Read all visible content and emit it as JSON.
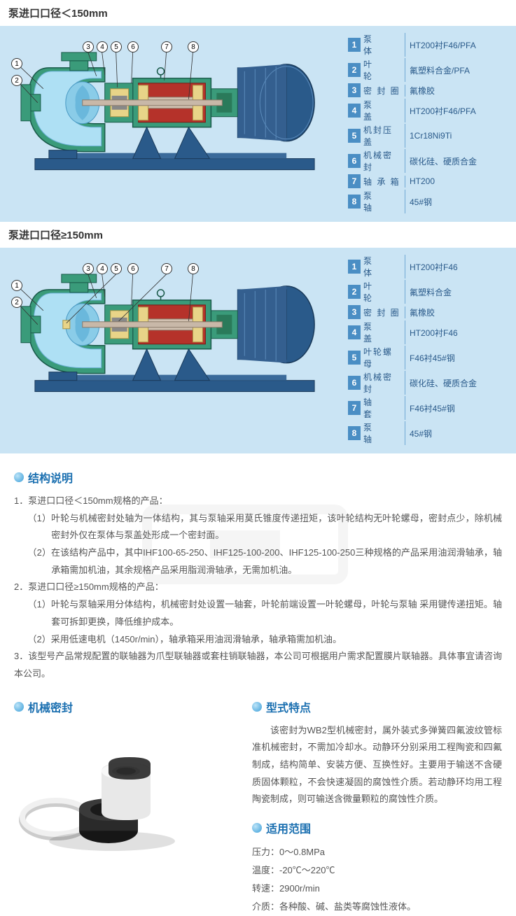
{
  "title1": "泵进口口径＜150mm",
  "title2": "泵进口口径≥150mm",
  "parts1": [
    {
      "n": "1",
      "name": "泵　　体",
      "mat": "HT200衬F46/PFA"
    },
    {
      "n": "2",
      "name": "叶　　轮",
      "mat": "氟塑料合金/PFA"
    },
    {
      "n": "3",
      "name": "密 封 圈",
      "mat": "氟橡胶"
    },
    {
      "n": "4",
      "name": "泵　　盖",
      "mat": "HT200衬F46/PFA"
    },
    {
      "n": "5",
      "name": "机封压盖",
      "mat": "1Cr18Ni9Ti"
    },
    {
      "n": "6",
      "name": "机械密封",
      "mat": "碳化硅、硬质合金"
    },
    {
      "n": "7",
      "name": "轴 承 箱",
      "mat": "HT200"
    },
    {
      "n": "8",
      "name": "泵　　轴",
      "mat": "45#钢"
    }
  ],
  "parts2": [
    {
      "n": "1",
      "name": "泵　　体",
      "mat": "HT200衬F46"
    },
    {
      "n": "2",
      "name": "叶　　轮",
      "mat": "氟塑料合金"
    },
    {
      "n": "3",
      "name": "密 封 圈",
      "mat": "氟橡胶"
    },
    {
      "n": "4",
      "name": "泵　　盖",
      "mat": "HT200衬F46"
    },
    {
      "n": "5",
      "name": "叶轮螺母",
      "mat": "F46衬45#钢"
    },
    {
      "n": "6",
      "name": "机械密封",
      "mat": "碳化硅、硬质合金"
    },
    {
      "n": "7",
      "name": "轴　　套",
      "mat": "F46衬45#钢"
    },
    {
      "n": "8",
      "name": "泵　　轴",
      "mat": "45#钢"
    }
  ],
  "struct_heading": "结构说明",
  "struct_lines": [
    "1．泵进口口径＜150mm规格的产品：",
    "（1）叶轮与机械密封处轴为一体结构，其与泵轴采用莫氏锥度传递扭矩，该叶轮结构无叶轮螺母，密封点少，除机械密封外仅在泵体与泵盖处形成一个密封面。",
    "（2）在该结构产品中，其中IHF100-65-250、IHF125-100-200、IHF125-100-250三种规格的产品采用油润滑轴承，轴承箱需加机油，其余规格产品采用脂润滑轴承，无需加机油。",
    "2．泵进口口径≥150mm规格的产品：",
    "（1）叶轮与泵轴采用分体结构，机械密封处设置一轴套，叶轮前端设置一叶轮螺母，叶轮与泵轴 采用键传递扭矩。轴套可拆卸更换，降低维护成本。",
    "（2）采用低速电机（1450r/min），轴承箱采用油润滑轴承，轴承箱需加机油。",
    "3．该型号产品常规配置的联轴器为爪型联轴器或套柱销联轴器，本公司可根据用户需求配置膜片联轴器。具体事宜请咨询本公司。"
  ],
  "seal_heading": "机械密封",
  "type_heading": "型式特点",
  "type_desc": "该密封为WB2型机械密封，属外装式多弹簧四氟波纹管标准机械密封，不需加冷却水。动静环分别采用工程陶瓷和四氟制成，结构简单、安装方便、互换性好。主要用于输送不含硬质固体颗粒，不会快速凝固的腐蚀性介质。若动静环均用工程陶瓷制成，则可输送含微量颗粒的腐蚀性介质。",
  "range_heading": "适用范围",
  "range_specs": [
    {
      "k": "压力：",
      "v": "0～0.8MPa"
    },
    {
      "k": "温度：",
      "v": "-20℃～220℃"
    },
    {
      "k": "转速：",
      "v": "2900r/min"
    },
    {
      "k": "介质：",
      "v": "各种酸、碱、盐类等腐蚀性液体。"
    }
  ],
  "colors": {
    "bg_blue": "#cae4f4",
    "badge_blue": "#4a8ec4",
    "text_blue": "#2a5a8a",
    "heading_blue": "#1a6fb0",
    "pump_green": "#3a9b7a",
    "pump_red": "#b5322a",
    "pump_navy": "#2a5a8a",
    "pump_yellow": "#e8d488"
  },
  "callouts": [
    "1",
    "2",
    "3",
    "4",
    "5",
    "6",
    "7",
    "8"
  ]
}
